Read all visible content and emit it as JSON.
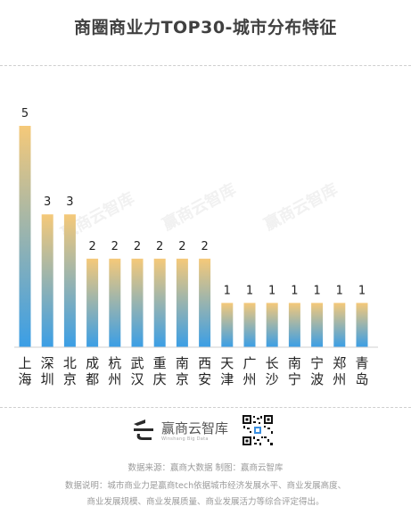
{
  "title": "商圈商业力TOP30-城市分布特征",
  "chart_data": {
    "type": "bar",
    "categories": [
      "上海",
      "深圳",
      "北京",
      "成都",
      "杭州",
      "武汉",
      "重庆",
      "南京",
      "西安",
      "天津",
      "广州",
      "长沙",
      "南宁",
      "宁波",
      "郑州",
      "青岛"
    ],
    "values": [
      5,
      3,
      3,
      2,
      2,
      2,
      2,
      2,
      2,
      1,
      1,
      1,
      1,
      1,
      1,
      1
    ],
    "ylim": [
      0,
      5
    ],
    "grid": false,
    "legend": "none",
    "colors": {
      "bar_top": "#f5c979",
      "bar_bottom": "#3a9ee6",
      "axis": "#cfcfcf"
    }
  },
  "watermark": "赢商云智库",
  "footer": {
    "brand": "赢商云智库",
    "brand_sub": "Winshang Big Data",
    "source": "数据来源：赢商大数据 制图：赢商云智库",
    "note_line1": "数据说明：城市商业力是赢商tech依据城市经济发展水平、商业发展高度、",
    "note_line2": "商业发展规模、商业发展质量、商业发展活力等综合评定得出。"
  }
}
